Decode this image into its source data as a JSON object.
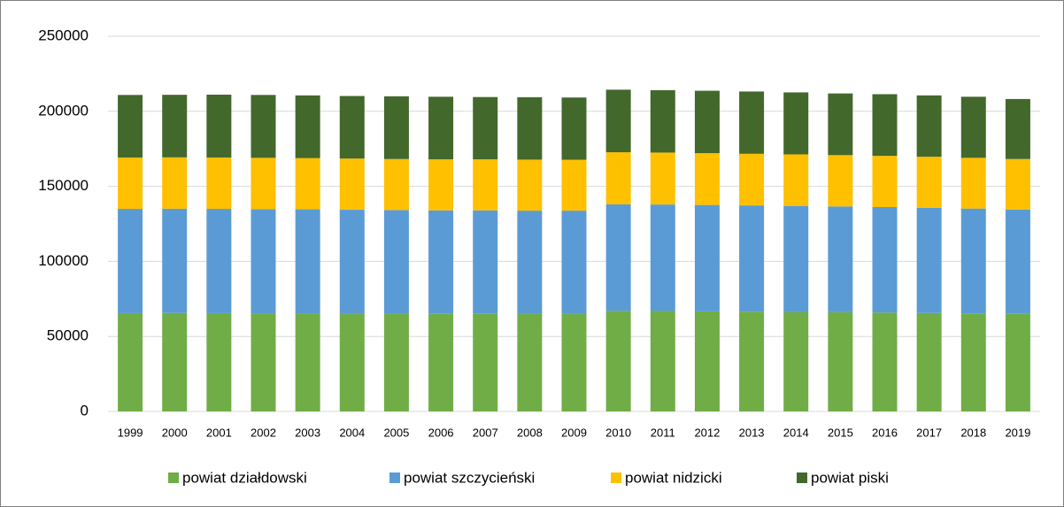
{
  "chart_data": {
    "type": "stacked_bar",
    "categories": [
      "1999",
      "2000",
      "2001",
      "2002",
      "2003",
      "2004",
      "2005",
      "2006",
      "2007",
      "2008",
      "2009",
      "2010",
      "2011",
      "2012",
      "2013",
      "2014",
      "2015",
      "2016",
      "2017",
      "2018",
      "2019"
    ],
    "series": [
      {
        "name": "powiat działdowski",
        "color": "#70ad47",
        "values": [
          65500,
          65600,
          65500,
          65400,
          65400,
          65200,
          65100,
          65000,
          65000,
          64900,
          64900,
          67000,
          66900,
          66700,
          66500,
          66300,
          66100,
          65900,
          65600,
          65300,
          65000
        ]
      },
      {
        "name": "powiat szczycieński",
        "color": "#5b9bd5",
        "values": [
          69500,
          69500,
          69500,
          69400,
          69300,
          69200,
          69100,
          69000,
          69000,
          68900,
          68900,
          71000,
          71000,
          70900,
          70800,
          70700,
          70500,
          70300,
          70100,
          69900,
          69600
        ]
      },
      {
        "name": "powiat nidzicki",
        "color": "#ffc000",
        "values": [
          34200,
          34200,
          34200,
          34200,
          34100,
          34100,
          34000,
          34000,
          34000,
          34000,
          33900,
          34700,
          34600,
          34500,
          34400,
          34300,
          34200,
          34100,
          34000,
          33800,
          33600
        ]
      },
      {
        "name": "powiat piski",
        "color": "#43682b",
        "values": [
          41700,
          41700,
          41900,
          41900,
          41800,
          41700,
          41800,
          41700,
          41500,
          41600,
          41500,
          41700,
          41600,
          41600,
          41500,
          41300,
          41100,
          41100,
          40900,
          40700,
          40000
        ]
      }
    ],
    "ylim": [
      0,
      250000
    ],
    "yticks": [
      0,
      50000,
      100000,
      150000,
      200000,
      250000
    ],
    "grid": true,
    "legend": "bottom"
  }
}
